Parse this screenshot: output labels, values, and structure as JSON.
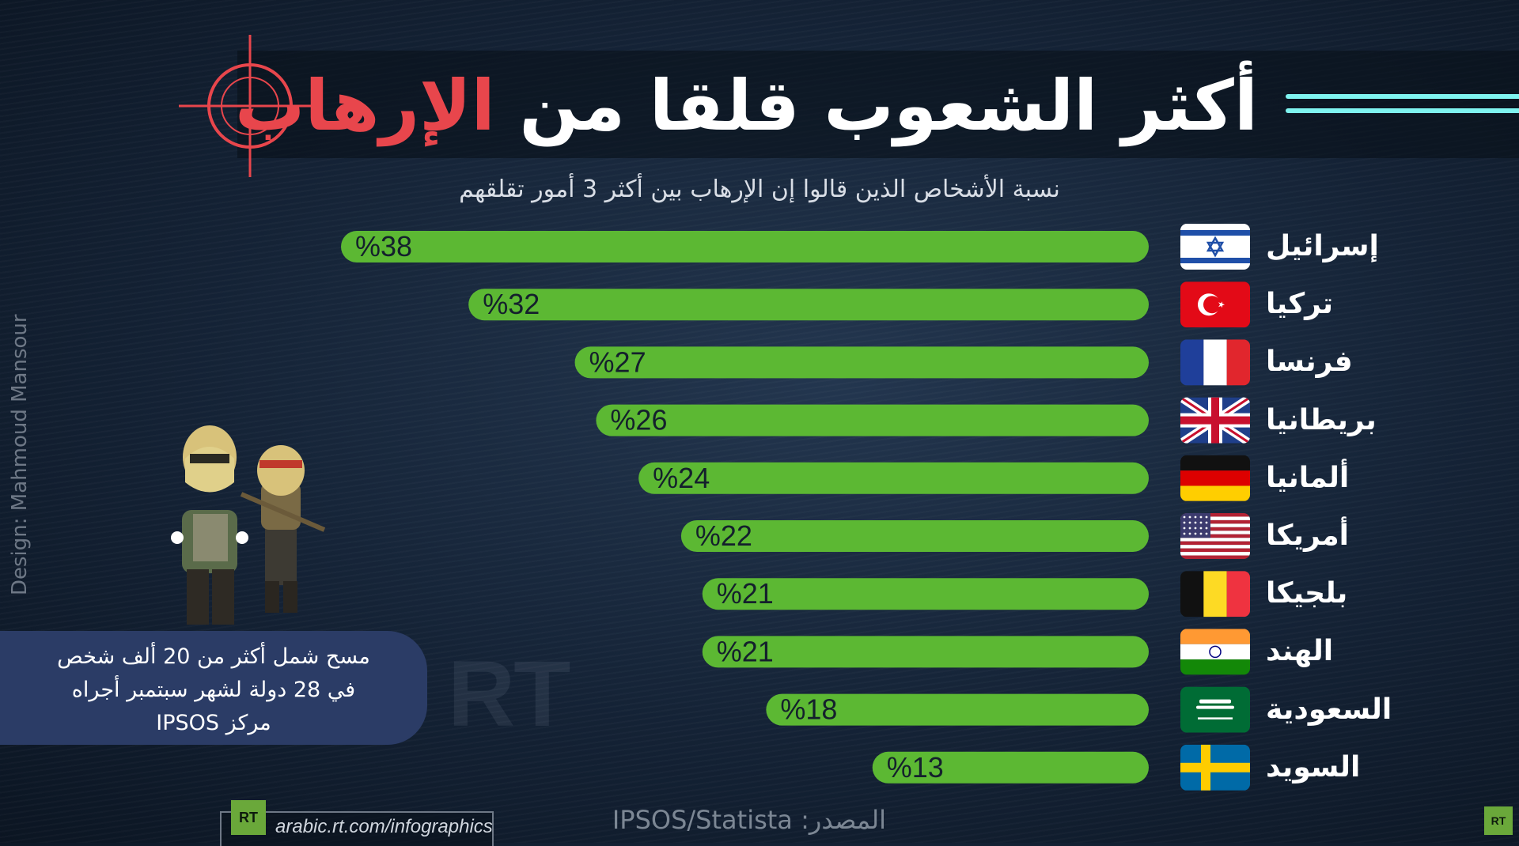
{
  "title": {
    "part1": "أكثر الشعوب قلقا من ",
    "highlight": "الإرهاب"
  },
  "subtitle": "نسبة الأشخاص الذين قالوا إن الإرهاب بين أكثر 3 أمور تقلقهم",
  "colors": {
    "bar": "#5cb833",
    "title_highlight": "#e8464c",
    "crosshair": "#e8464c",
    "accent_cyan": "#7ff4f0",
    "note_box": "#2b3c66"
  },
  "chart_data": {
    "type": "bar",
    "orientation": "horizontal",
    "categories": [
      "إسرائيل",
      "تركيا",
      "فرنسا",
      "بريطانيا",
      "ألمانيا",
      "أمريكا",
      "بلجيكا",
      "الهند",
      "السعودية",
      "السويد"
    ],
    "values": [
      38,
      32,
      27,
      26,
      24,
      22,
      21,
      21,
      18,
      13
    ],
    "value_labels": [
      "%38",
      "%32",
      "%27",
      "%26",
      "%24",
      "%22",
      "%21",
      "%21",
      "%18",
      "%13"
    ],
    "flags": [
      "israel-flag",
      "turkey-flag",
      "france-flag",
      "uk-flag",
      "germany-flag",
      "usa-flag",
      "belgium-flag",
      "india-flag",
      "saudi-flag",
      "sweden-flag"
    ],
    "title": "أكثر الشعوب قلقا من الإرهاب",
    "subtitle": "نسبة الأشخاص الذين قالوا إن الإرهاب بين أكثر 3 أمور تقلقهم",
    "xlim": [
      0,
      38
    ],
    "grid": false,
    "legend": "none"
  },
  "note": {
    "line1": "مسح شمل أكثر من 20 ألف شخص",
    "line2": "في 28 دولة لشهر سبتمبر  أجراه",
    "line3": "مركز IPSOS"
  },
  "design_credit": "Design: Mahmoud Mansour",
  "watermark": "RT",
  "footer": {
    "rt_logo": "RT",
    "site": "arabic.rt.com/infographics",
    "source_label": "المصدر:",
    "source_value": "IPSOS/Statista"
  }
}
